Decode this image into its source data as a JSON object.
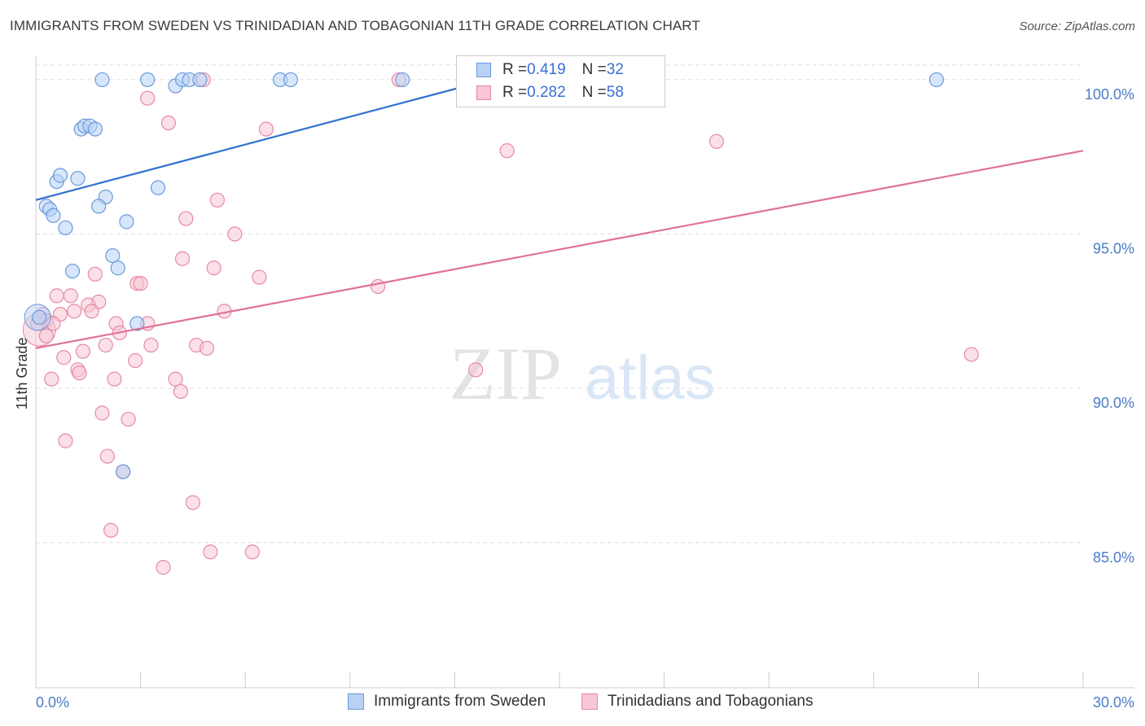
{
  "title": "IMMIGRANTS FROM SWEDEN VS TRINIDADIAN AND TOBAGONIAN 11TH GRADE CORRELATION CHART",
  "source": "Source: ZipAtlas.com",
  "watermark": {
    "zip": "ZIP",
    "atlas": "atlas"
  },
  "colors": {
    "blue_fill": "#b7d2f5",
    "blue_stroke": "#6a9ad9",
    "blue_line": "#2f72d0",
    "pink_fill": "#f8c6d4",
    "pink_stroke": "#e58aa6",
    "pink_line": "#e0709a",
    "grid": "#dddddd",
    "tick_label": "#4a7cc7"
  },
  "legend_top": [
    {
      "r_label": "R = ",
      "r_value": "0.419",
      "n_label": "N = ",
      "n_value": "32"
    },
    {
      "r_label": "R = ",
      "r_value": "0.282",
      "n_label": "N = ",
      "n_value": "58"
    }
  ],
  "legend_bottom": [
    "Immigrants from Sweden",
    "Trinidadians and Tobagonians"
  ],
  "chart_data": {
    "type": "scatter",
    "title": "IMMIGRANTS FROM SWEDEN VS TRINIDADIAN AND TOBAGONIAN 11TH GRADE CORRELATION CHART",
    "xlabel": "",
    "ylabel": "11th Grade",
    "xlim": [
      0,
      30
    ],
    "ylim": [
      80.3,
      101.0
    ],
    "x_tick_labels": [
      "0.0%",
      "30.0%"
    ],
    "y_ticks": [
      85,
      90,
      95,
      100
    ],
    "y_tick_labels": [
      "85.0%",
      "90.0%",
      "95.0%",
      "100.0%"
    ],
    "grid": true,
    "legend_position": "top-center",
    "series": [
      {
        "name": "Immigrants from Sweden",
        "color": "#b7d2f5",
        "R": 0.419,
        "N": 32,
        "trend": {
          "x": [
            0,
            13.0
          ],
          "y": [
            96.1,
            100.0
          ]
        },
        "points": [
          [
            1.9,
            100.0
          ],
          [
            3.2,
            100.0
          ],
          [
            4.0,
            99.8
          ],
          [
            4.2,
            100.0
          ],
          [
            4.4,
            100.0
          ],
          [
            4.7,
            100.0
          ],
          [
            7.0,
            100.0
          ],
          [
            7.3,
            100.0
          ],
          [
            10.5,
            100.0
          ],
          [
            12.7,
            100.0
          ],
          [
            25.8,
            100.0
          ],
          [
            1.3,
            98.4
          ],
          [
            1.4,
            98.5
          ],
          [
            1.55,
            98.5
          ],
          [
            1.7,
            98.4
          ],
          [
            0.6,
            96.7
          ],
          [
            0.7,
            96.9
          ],
          [
            1.2,
            96.8
          ],
          [
            2.0,
            96.2
          ],
          [
            3.5,
            96.5
          ],
          [
            1.8,
            95.9
          ],
          [
            0.3,
            95.9
          ],
          [
            0.4,
            95.8
          ],
          [
            0.5,
            95.6
          ],
          [
            0.85,
            95.2
          ],
          [
            2.6,
            95.4
          ],
          [
            2.2,
            94.3
          ],
          [
            2.35,
            93.9
          ],
          [
            1.05,
            93.8
          ],
          [
            2.9,
            92.1
          ],
          [
            0.1,
            92.3
          ],
          [
            2.5,
            87.3
          ]
        ]
      },
      {
        "name": "Trinidadians and Tobagonians",
        "color": "#f8c6d4",
        "R": 0.282,
        "N": 58,
        "trend": {
          "x": [
            0,
            30
          ],
          "y": [
            91.3,
            97.7
          ]
        },
        "points": [
          [
            4.8,
            100.0
          ],
          [
            10.4,
            100.0
          ],
          [
            3.2,
            99.4
          ],
          [
            3.8,
            98.6
          ],
          [
            6.6,
            98.4
          ],
          [
            13.5,
            97.7
          ],
          [
            19.5,
            98.0
          ],
          [
            5.2,
            96.1
          ],
          [
            4.3,
            95.5
          ],
          [
            5.7,
            95.0
          ],
          [
            4.2,
            94.2
          ],
          [
            5.1,
            93.9
          ],
          [
            6.4,
            93.6
          ],
          [
            1.7,
            93.7
          ],
          [
            2.9,
            93.4
          ],
          [
            3.0,
            93.4
          ],
          [
            9.8,
            93.3
          ],
          [
            0.6,
            93.0
          ],
          [
            1.0,
            93.0
          ],
          [
            1.8,
            92.8
          ],
          [
            1.5,
            92.7
          ],
          [
            5.4,
            92.5
          ],
          [
            1.1,
            92.5
          ],
          [
            1.6,
            92.5
          ],
          [
            0.7,
            92.4
          ],
          [
            0.2,
            92.4
          ],
          [
            0.3,
            92.2
          ],
          [
            0.5,
            92.1
          ],
          [
            0.05,
            92.1
          ],
          [
            2.3,
            92.1
          ],
          [
            3.2,
            92.1
          ],
          [
            2.4,
            91.8
          ],
          [
            3.3,
            91.4
          ],
          [
            2.0,
            91.4
          ],
          [
            4.6,
            91.4
          ],
          [
            4.9,
            91.3
          ],
          [
            0.3,
            91.7
          ],
          [
            0.8,
            91.0
          ],
          [
            1.35,
            91.2
          ],
          [
            2.85,
            90.9
          ],
          [
            1.2,
            90.6
          ],
          [
            1.25,
            90.5
          ],
          [
            12.6,
            90.6
          ],
          [
            26.8,
            91.1
          ],
          [
            0.45,
            90.3
          ],
          [
            2.25,
            90.3
          ],
          [
            4.0,
            90.3
          ],
          [
            4.15,
            89.9
          ],
          [
            1.9,
            89.2
          ],
          [
            2.65,
            89.0
          ],
          [
            0.85,
            88.3
          ],
          [
            2.05,
            87.8
          ],
          [
            2.5,
            87.3
          ],
          [
            4.5,
            86.3
          ],
          [
            2.15,
            85.4
          ],
          [
            5.0,
            84.7
          ],
          [
            6.2,
            84.7
          ],
          [
            3.65,
            84.2
          ]
        ]
      }
    ]
  }
}
